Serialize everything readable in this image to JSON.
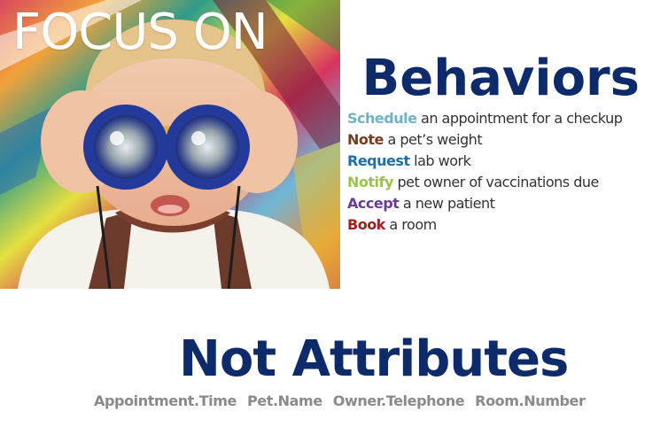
{
  "photo": {
    "icon": "child-with-binoculars-photo",
    "caption": "FOCUS ON"
  },
  "behaviors": {
    "title": "Behaviors",
    "items": [
      {
        "verb": "Schedule",
        "rest": " an appointment for a checkup",
        "color": "#6fb3c9"
      },
      {
        "verb": "Note",
        "rest": " a pet’s weight",
        "color": "#7a3b1e"
      },
      {
        "verb": "Request",
        "rest": " lab work",
        "color": "#1f6fa8"
      },
      {
        "verb": "Notify",
        "rest": " pet owner of vaccinations due",
        "color": "#9cc44a"
      },
      {
        "verb": "Accept",
        "rest": " a new patient",
        "color": "#6a3c99"
      },
      {
        "verb": "Book",
        "rest": " a room",
        "color": "#a3201f"
      }
    ]
  },
  "attributes": {
    "title": "Not Attributes",
    "items": [
      "Appointment.Time",
      "Pet.Name",
      "Owner.Telephone",
      "Room.Number"
    ]
  },
  "colors": {
    "title_navy": "#0d2a6b",
    "attribute_gray": "#8a8a8a"
  }
}
